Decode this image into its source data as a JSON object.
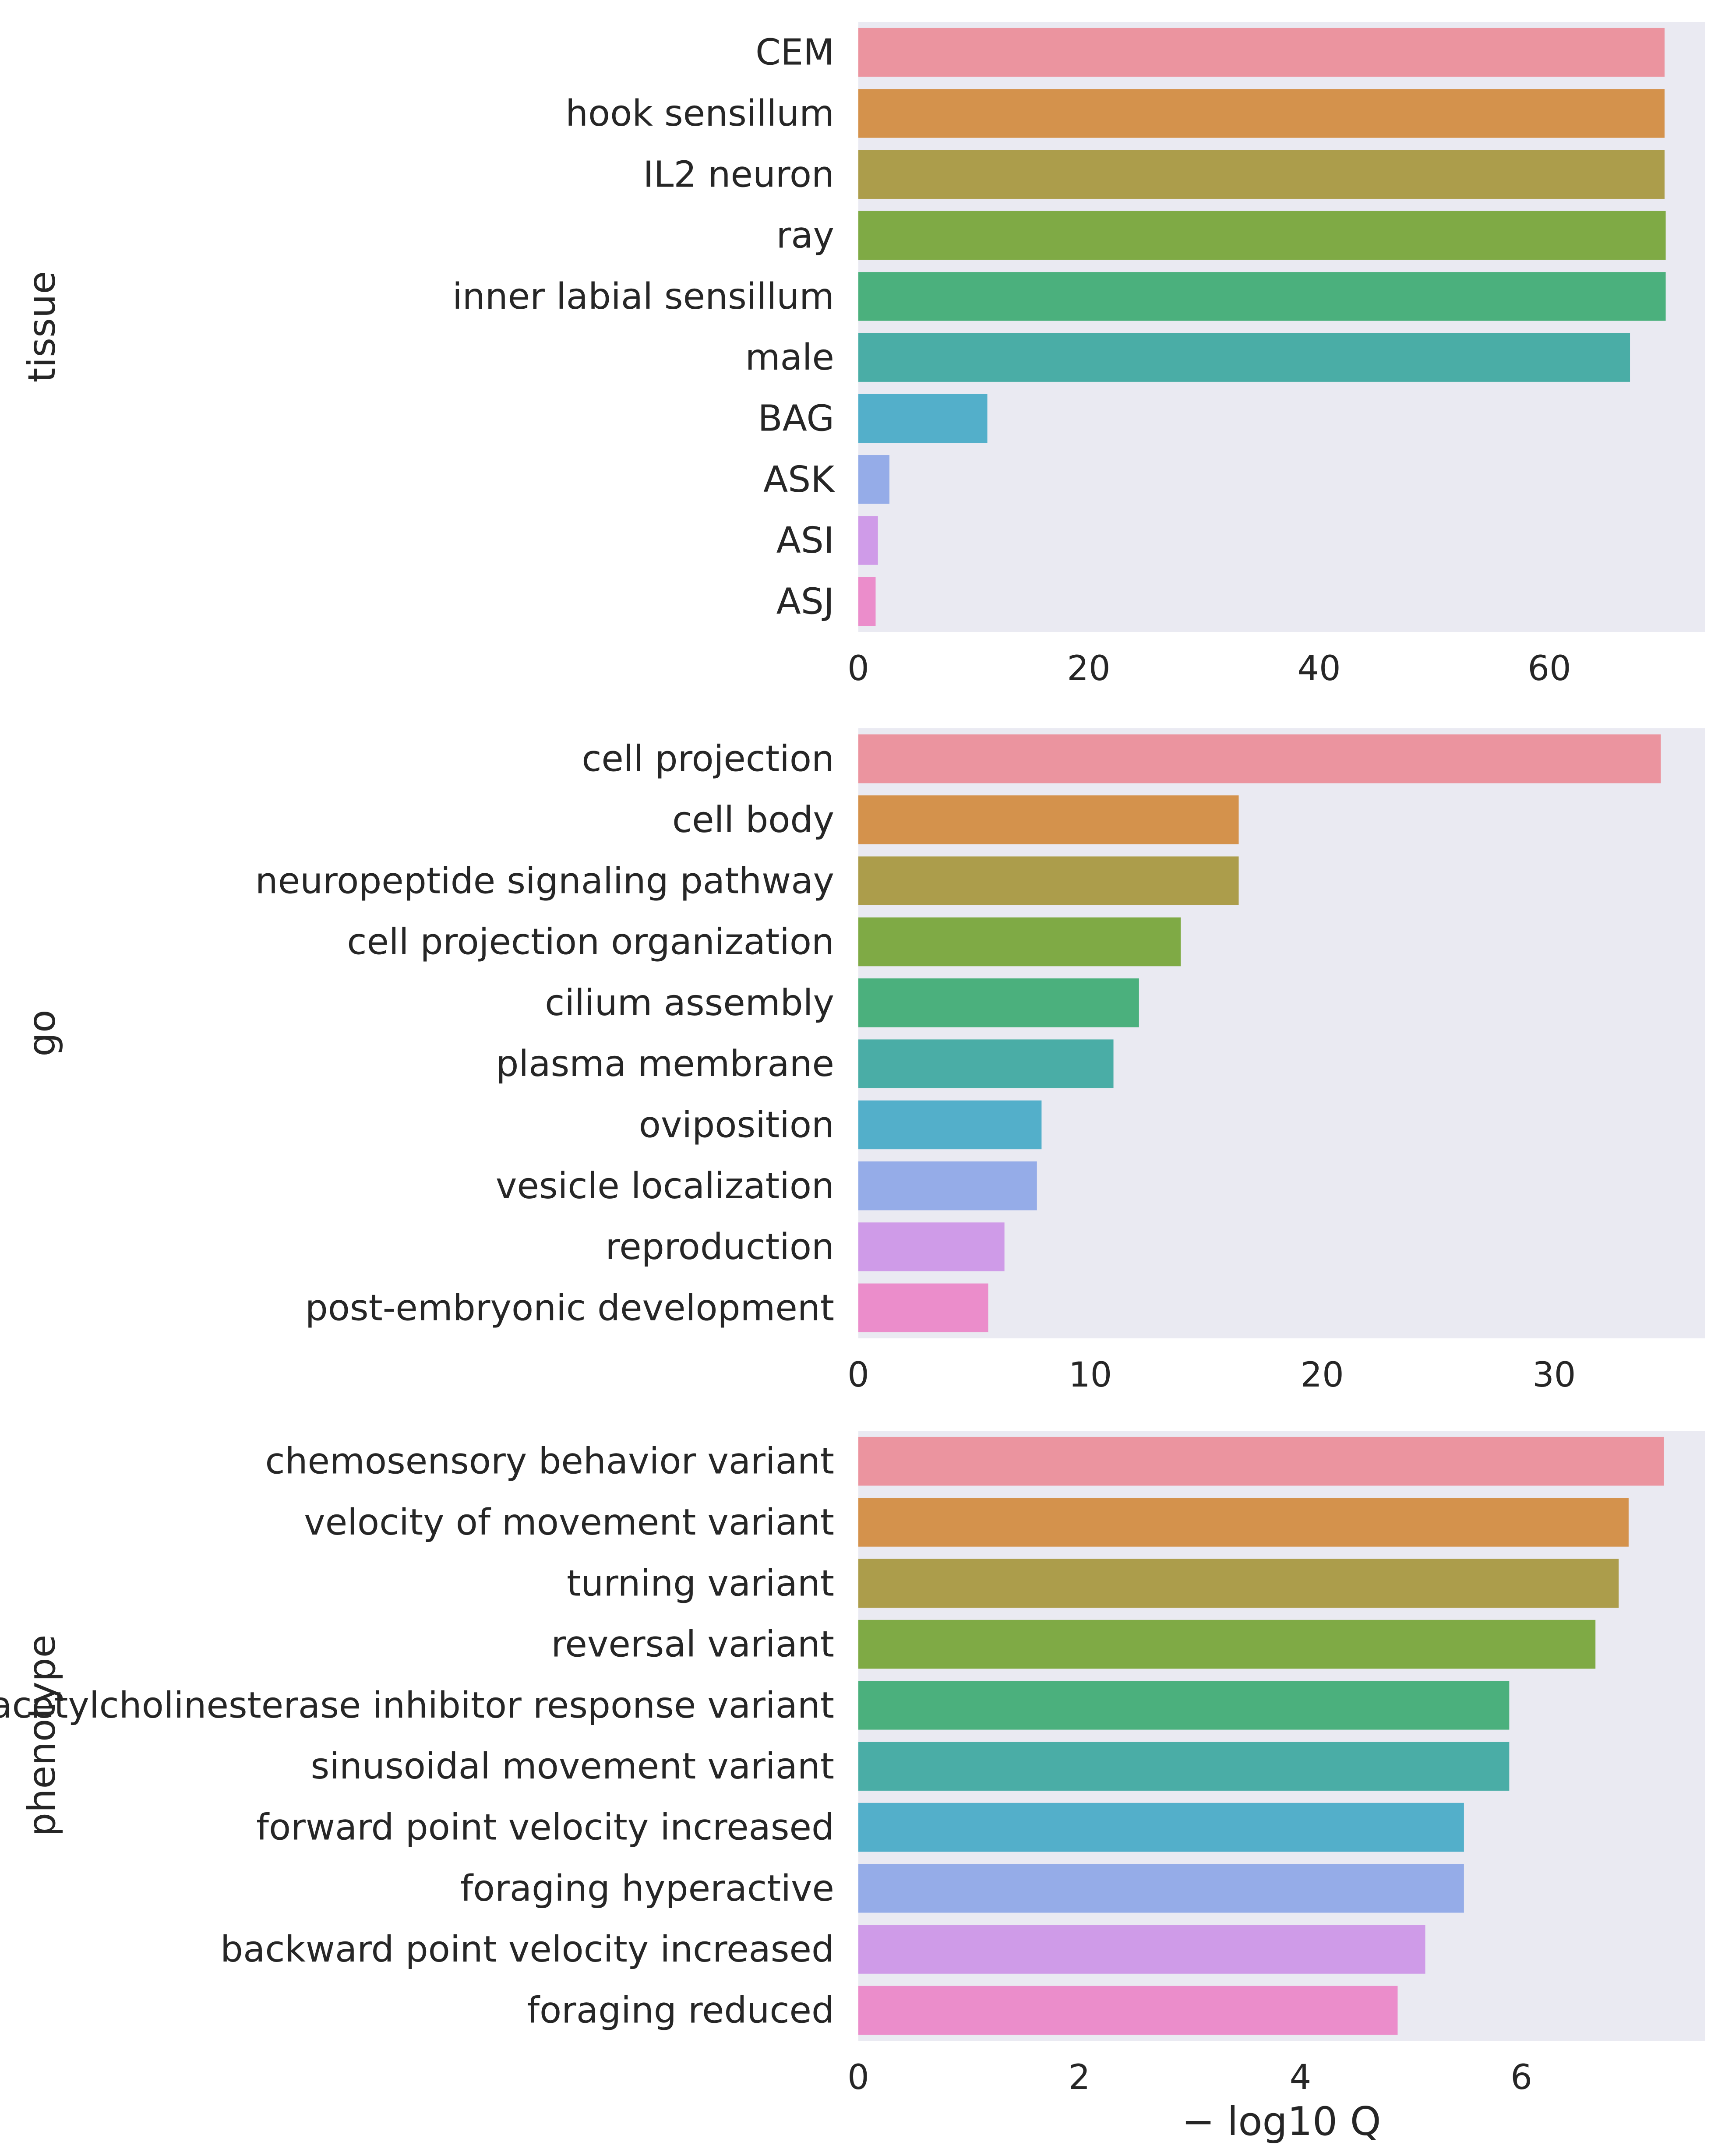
{
  "colors": [
    "#EB949F",
    "#D4924C",
    "#AC9D4B",
    "#7FAA45",
    "#4BB07D",
    "#4AADA6",
    "#53AFCA",
    "#95ACE8",
    "#CF9BE8",
    "#EB8DCB"
  ],
  "chart_data": [
    {
      "type": "bar",
      "orientation": "horizontal",
      "ylabel": "tissue",
      "xlabel": "",
      "categories": [
        "CEM",
        "hook sensillum",
        "IL2 neuron",
        "ray",
        "inner labial sensillum",
        "male",
        "BAG",
        "ASK",
        "ASI",
        "ASJ"
      ],
      "values": [
        70,
        70,
        70,
        70.1,
        70.1,
        67,
        11.2,
        2.7,
        1.7,
        1.5
      ],
      "xlim": [
        0,
        73.5
      ],
      "xticks": [
        0,
        20,
        40,
        60
      ],
      "xtick_labels": [
        "0",
        "20",
        "40",
        "60"
      ],
      "grid": false
    },
    {
      "type": "bar",
      "orientation": "horizontal",
      "ylabel": "go",
      "xlabel": "",
      "categories": [
        "cell projection",
        "cell body",
        "neuropeptide signaling pathway",
        "cell projection organization",
        "cilium assembly",
        "plasma membrane",
        "oviposition",
        "vesicle localization",
        "reproduction",
        "post-embryonic development"
      ],
      "values": [
        34.6,
        16.4,
        16.4,
        13.9,
        12.1,
        11.0,
        7.9,
        7.7,
        6.3,
        5.6
      ],
      "xlim": [
        0,
        36.5
      ],
      "xticks": [
        0,
        10,
        20,
        30
      ],
      "xtick_labels": [
        "0",
        "10",
        "20",
        "30"
      ],
      "grid": false
    },
    {
      "type": "bar",
      "orientation": "horizontal",
      "ylabel": "phenotype",
      "xlabel": "− log10 Q",
      "categories": [
        "chemosensory behavior variant",
        "velocity of movement variant",
        "turning variant",
        "reversal variant",
        "acetylcholinesterase inhibitor response variant",
        "sinusoidal movement variant",
        "forward point velocity increased",
        "foraging hyperactive",
        "backward point velocity increased",
        "foraging reduced"
      ],
      "values": [
        7.29,
        6.97,
        6.88,
        6.67,
        5.89,
        5.89,
        5.48,
        5.48,
        5.13,
        4.88
      ],
      "xlim": [
        0,
        7.66
      ],
      "xticks": [
        0,
        2,
        4,
        6
      ],
      "xtick_labels": [
        "0",
        "2",
        "4",
        "6"
      ],
      "grid": false
    }
  ]
}
